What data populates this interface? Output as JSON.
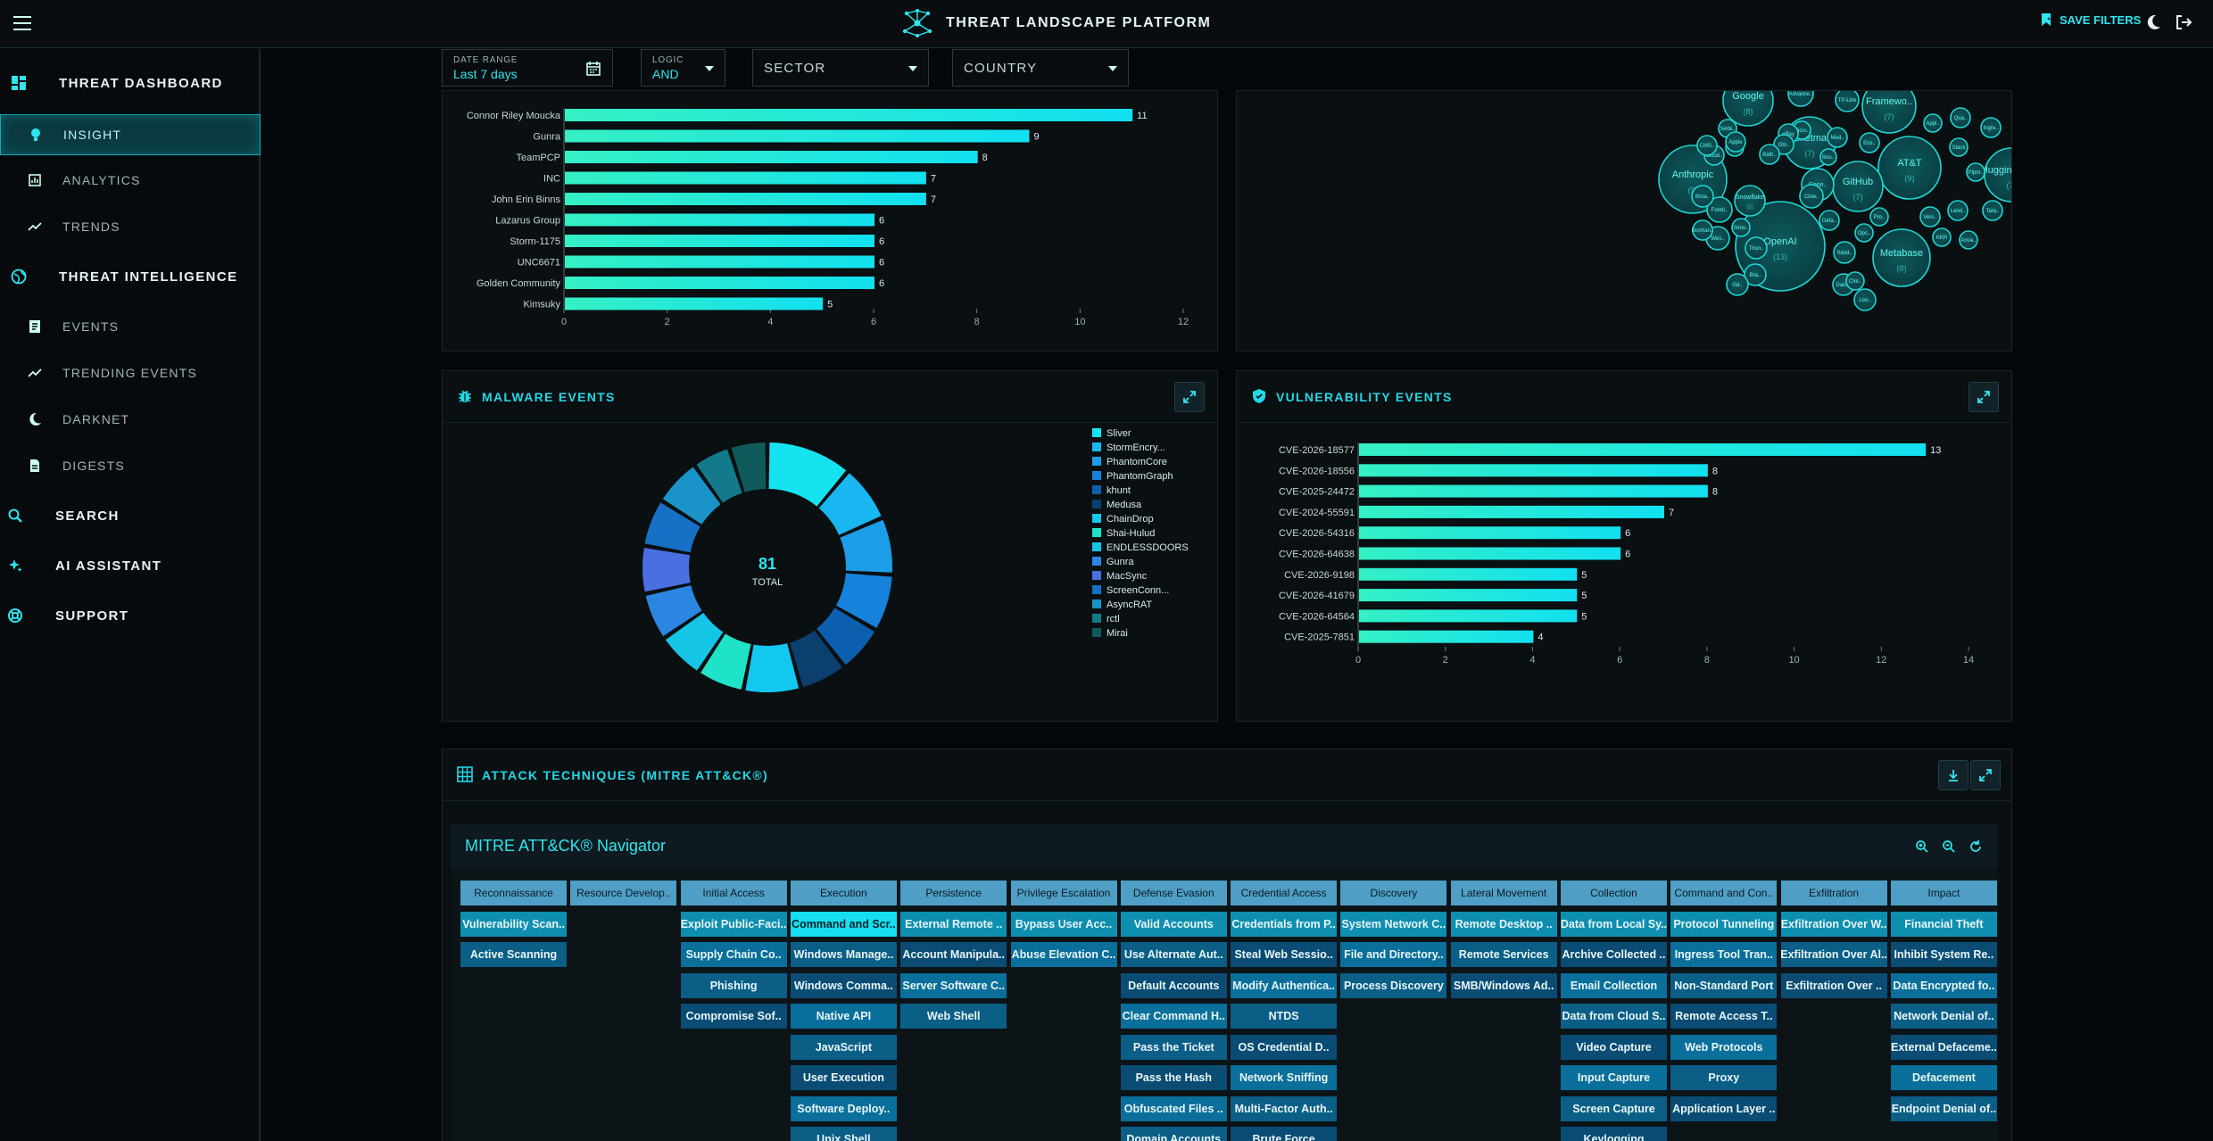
{
  "app": {
    "title": "THREAT LANDSCAPE PLATFORM",
    "save_filters": "SAVE FILTERS"
  },
  "sidebar": {
    "items": [
      {
        "label": "THREAT DASHBOARD",
        "icon": "dashboard-icon"
      },
      {
        "label": "INSIGHT",
        "icon": "bulb-icon"
      },
      {
        "label": "ANALYTICS",
        "icon": "analytics-icon"
      },
      {
        "label": "TRENDS",
        "icon": "trend-line-icon"
      },
      {
        "label": "THREAT INTELLIGENCE",
        "icon": "globe-icon"
      },
      {
        "label": "EVENTS",
        "icon": "events-icon"
      },
      {
        "label": "TRENDING EVENTS",
        "icon": "trend-line-icon"
      },
      {
        "label": "DARKNET",
        "icon": "moon-icon"
      },
      {
        "label": "DIGESTS",
        "icon": "document-icon"
      },
      {
        "label": "SEARCH",
        "icon": "search-icon"
      },
      {
        "label": "AI ASSISTANT",
        "icon": "sparkle-icon"
      },
      {
        "label": "SUPPORT",
        "icon": "lifebuoy-icon"
      }
    ]
  },
  "filters": {
    "date_range": {
      "caption": "DATE RANGE",
      "value": "Last 7 days"
    },
    "logic": {
      "caption": "LOGIC",
      "value": "AND"
    },
    "sector": {
      "label": "SECTOR"
    },
    "country": {
      "label": "COUNTRY"
    }
  },
  "colors": {
    "accent": "#22d9e6",
    "bar": "#27e0d8"
  },
  "actors_chart": {
    "chart_data": {
      "type": "bar",
      "orientation": "horizontal",
      "categories": [
        "Connor Riley Moucka",
        "Gunra",
        "TeamPCP",
        "INC",
        "John Erin Binns",
        "Lazarus Group",
        "Storm-1175",
        "UNC6671",
        "Golden Community",
        "Kimsuky"
      ],
      "values": [
        11,
        9,
        8,
        7,
        7,
        6,
        6,
        6,
        6,
        5
      ],
      "xlim": [
        0,
        12
      ],
      "xticks": [
        "0",
        "2",
        "4",
        "6",
        "8",
        "10",
        "12"
      ]
    }
  },
  "bubble_chart": {
    "chart_data": {
      "type": "bubble",
      "bubbles": [
        {
          "label": "OpenAI",
          "count": "(13)"
        },
        {
          "label": "Google",
          "count": "(8)"
        },
        {
          "label": "Anthropic",
          "count": "(9)"
        },
        {
          "label": "AT&T",
          "count": "(9)"
        },
        {
          "label": "Metabase",
          "count": "(8)"
        },
        {
          "label": "GitHub",
          "count": "(7)"
        },
        {
          "label": "Ticketma..",
          "count": "(7)"
        },
        {
          "label": "Framewo..",
          "count": "(7)"
        },
        {
          "label": "Hugging Face",
          "count": "(7)"
        },
        {
          "label": "Advance..",
          "count": ""
        },
        {
          "label": "TP-Link",
          "count": ""
        },
        {
          "label": "Qua..",
          "count": ""
        },
        {
          "label": "Ingre..",
          "count": ""
        },
        {
          "label": "Appl..",
          "count": ""
        },
        {
          "label": "Stack",
          "count": ""
        },
        {
          "label": "Pfpm..",
          "count": ""
        },
        {
          "label": "Tara..",
          "count": ""
        },
        {
          "label": "Lend..",
          "count": ""
        },
        {
          "label": "Vers..",
          "count": ""
        },
        {
          "label": "Pro..",
          "count": ""
        },
        {
          "label": "KKR",
          "count": ""
        },
        {
          "label": "Anva..",
          "count": ""
        },
        {
          "label": "Conn..",
          "count": ""
        },
        {
          "label": "Sand..",
          "count": ""
        },
        {
          "label": "Dass..",
          "count": ""
        },
        {
          "label": "Che..",
          "count": ""
        },
        {
          "label": "Leo..",
          "count": ""
        },
        {
          "label": "Clow..",
          "count": ""
        },
        {
          "label": "Defa..",
          "count": ""
        },
        {
          "label": "Opc..",
          "count": ""
        },
        {
          "label": "Bou..",
          "count": ""
        },
        {
          "label": "Med..",
          "count": ""
        },
        {
          "label": "Eco..",
          "count": ""
        },
        {
          "label": "Micro..",
          "count": ""
        },
        {
          "label": "eBay",
          "count": ""
        },
        {
          "label": "Glo..",
          "count": ""
        },
        {
          "label": "Bath..",
          "count": ""
        },
        {
          "label": "Tuo..",
          "count": ""
        },
        {
          "label": "Serbi..",
          "count": ""
        },
        {
          "label": "Cloud..",
          "count": ""
        },
        {
          "label": "Apple",
          "count": ""
        },
        {
          "label": "CMS..",
          "count": ""
        },
        {
          "label": "Foreti..",
          "count": ""
        },
        {
          "label": "Broa..",
          "count": ""
        },
        {
          "label": "Wes..",
          "count": ""
        },
        {
          "label": "Norman..",
          "count": ""
        },
        {
          "label": "Stroo..",
          "count": ""
        },
        {
          "label": "Snowflake",
          "count": "(5)"
        },
        {
          "label": "Thun..",
          "count": ""
        },
        {
          "label": "Bra..",
          "count": ""
        },
        {
          "label": "Gd..",
          "count": ""
        }
      ]
    }
  },
  "malware_panel": {
    "title": "MALWARE EVENTS",
    "total": "81",
    "total_label": "TOTAL",
    "chart_data": {
      "type": "pie",
      "donut": true,
      "legend_position": "right",
      "slices": [
        {
          "name": "Sliver",
          "value": 9,
          "color": "#16e3f0"
        },
        {
          "name": "StormEncry...",
          "value": 6,
          "color": "#18b7f2"
        },
        {
          "name": "PhantomCore",
          "value": 6,
          "color": "#1b9de8"
        },
        {
          "name": "PhantomGraph",
          "value": 6,
          "color": "#1782db"
        },
        {
          "name": "khunt",
          "value": 5,
          "color": "#0b5fae"
        },
        {
          "name": "Medusa",
          "value": 5,
          "color": "#0a3f6e"
        },
        {
          "name": "ChainDrop",
          "value": 6,
          "color": "#13c8ee"
        },
        {
          "name": "Shai-Hulud",
          "value": 5,
          "color": "#1fe3c8"
        },
        {
          "name": "ENDLESSDOORS",
          "value": 5,
          "color": "#14c5e6"
        },
        {
          "name": "Gunra",
          "value": 5,
          "color": "#2a86e0"
        },
        {
          "name": "MacSync",
          "value": 5,
          "color": "#4a6fe0"
        },
        {
          "name": "ScreenConn...",
          "value": 5,
          "color": "#1670c6"
        },
        {
          "name": "AsyncRAT",
          "value": 5,
          "color": "#1a93c8"
        },
        {
          "name": "rctl",
          "value": 4,
          "color": "#137a8c"
        },
        {
          "name": "Mirai",
          "value": 4,
          "color": "#0f5a5a"
        }
      ]
    }
  },
  "vuln_panel": {
    "title": "VULNERABILITY EVENTS",
    "chart_data": {
      "type": "bar",
      "orientation": "horizontal",
      "categories": [
        "CVE-2026-18577",
        "CVE-2026-18556",
        "CVE-2025-24472",
        "CVE-2024-55591",
        "CVE-2026-54316",
        "CVE-2026-64638",
        "CVE-2026-9198",
        "CVE-2026-41679",
        "CVE-2026-64564",
        "CVE-2025-7851"
      ],
      "values": [
        13,
        8,
        8,
        7,
        6,
        6,
        5,
        5,
        5,
        4
      ],
      "xlim": [
        0,
        14
      ],
      "xticks": [
        "0",
        "2",
        "4",
        "6",
        "8",
        "10",
        "12",
        "14"
      ]
    }
  },
  "attack_panel": {
    "title": "ATTACK TECHNIQUES (MITRE ATT&CK®)",
    "navigator_title": "MITRE ATT&CK® Navigator",
    "tactics": [
      {
        "name": "Reconnaissance",
        "techniques": [
          "Vulnerability Scan..",
          "Active Scanning"
        ]
      },
      {
        "name": "Resource Develop..",
        "techniques": []
      },
      {
        "name": "Initial Access",
        "techniques": [
          "Exploit Public-Faci..",
          "Supply Chain Co..",
          "Phishing",
          "Compromise Sof.."
        ]
      },
      {
        "name": "Execution",
        "techniques": [
          "Command and Scr..",
          "Windows Manage..",
          "Windows Comma..",
          "Native API",
          "JavaScript",
          "User Execution",
          "Software Deploy..",
          "Unix Shell"
        ]
      },
      {
        "name": "Persistence",
        "techniques": [
          "External Remote ..",
          "Account Manipula..",
          "Server Software C..",
          "Web Shell"
        ]
      },
      {
        "name": "Privilege Escalation",
        "techniques": [
          "Bypass User Acc..",
          "Abuse Elevation C.."
        ]
      },
      {
        "name": "Defense Evasion",
        "techniques": [
          "Valid Accounts",
          "Use Alternate Aut..",
          "Default Accounts",
          "Clear Command H..",
          "Pass the Ticket",
          "Pass the Hash",
          "Obfuscated Files ..",
          "Domain Accounts"
        ]
      },
      {
        "name": "Credential Access",
        "techniques": [
          "Credentials from P..",
          "Steal Web Sessio..",
          "Modify Authentica..",
          "NTDS",
          "OS Credential D..",
          "Network Sniffing",
          "Multi-Factor Auth..",
          "Brute Force"
        ]
      },
      {
        "name": "Discovery",
        "techniques": [
          "System Network C..",
          "File and Directory..",
          "Process Discovery"
        ]
      },
      {
        "name": "Lateral Movement",
        "techniques": [
          "Remote Desktop ..",
          "Remote Services",
          "SMB/Windows Ad.."
        ]
      },
      {
        "name": "Collection",
        "techniques": [
          "Data from Local Sy..",
          "Archive Collected ..",
          "Email Collection",
          "Data from Cloud S..",
          "Video Capture",
          "Input Capture",
          "Screen Capture",
          "Keylogging"
        ]
      },
      {
        "name": "Command and Con..",
        "techniques": [
          "Protocol Tunneling",
          "Ingress Tool Tran..",
          "Non-Standard Port",
          "Remote Access T..",
          "Web Protocols",
          "Proxy",
          "Application Layer .."
        ]
      },
      {
        "name": "Exfiltration",
        "techniques": [
          "Exfiltration Over W..",
          "Exfiltration Over Al..",
          "Exfiltration Over .."
        ]
      },
      {
        "name": "Impact",
        "techniques": [
          "Financial Theft",
          "Inhibit System Re..",
          "Data Encrypted fo..",
          "Network Denial of..",
          "External Defaceme..",
          "Defacement",
          "Endpoint Denial of.."
        ]
      }
    ]
  }
}
